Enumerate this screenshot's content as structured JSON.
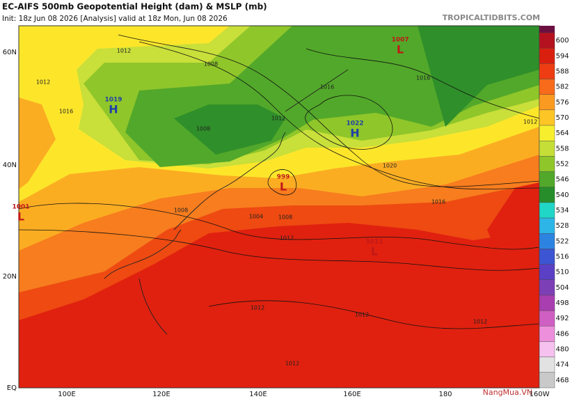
{
  "header": {
    "title": "EC-AIFS 500mb Geopotential Height (dam) & MSLP (mb)",
    "subtitle": "Init: 18z Jun 08 2026   [Analysis]   valid at 18z Mon, Jun 08 2026",
    "site": "TROPICALTIDBITS.COM"
  },
  "latitude_labels": [
    "60N",
    "40N",
    "20N",
    "EQ"
  ],
  "longitude_labels": [
    "100E",
    "120E",
    "140E",
    "160E",
    "180",
    "160W"
  ],
  "colorbar": {
    "labels": [
      "600",
      "594",
      "588",
      "582",
      "576",
      "570",
      "564",
      "558",
      "552",
      "546",
      "540",
      "534",
      "528",
      "522",
      "516",
      "510",
      "504",
      "498",
      "492",
      "486",
      "480",
      "474",
      "468"
    ],
    "colors": [
      "#b5121f",
      "#d9200f",
      "#ee3d12",
      "#f76b1a",
      "#fa9a20",
      "#fdc626",
      "#f7ee2e",
      "#c5de38",
      "#8fc62a",
      "#52a82a",
      "#268d2a",
      "#20d6c6",
      "#2cb5e6",
      "#2d84e0",
      "#3c55d2",
      "#5b3fc4",
      "#7d3fb6",
      "#a83eb0",
      "#cf5fc2",
      "#ee8fdc",
      "#f6c1ef",
      "#e2e2e2",
      "#c9c9c9"
    ]
  },
  "pressure_centers": [
    {
      "type": "H",
      "value": "1019"
    },
    {
      "type": "L",
      "value": "1007"
    },
    {
      "type": "H",
      "value": "1022"
    },
    {
      "type": "L",
      "value": "999"
    },
    {
      "type": "L",
      "value": "1011"
    },
    {
      "type": "L",
      "value": "1001"
    }
  ],
  "contour_labels": [
    "1012",
    "1008",
    "1012",
    "1016",
    "1016",
    "1016",
    "1012",
    "1008",
    "1004",
    "1008",
    "1012",
    "1012",
    "1012",
    "1012",
    "1012",
    "1020",
    "1016",
    "1012",
    "1008"
  ],
  "watermark": "NangMua.VN"
}
